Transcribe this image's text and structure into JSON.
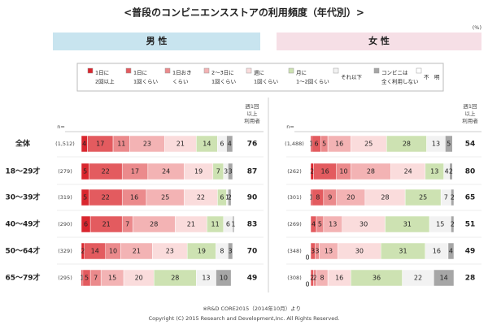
{
  "title": "<普段のコンビニエンスストアの利用頻度（年代別）>",
  "unit": "(%)",
  "legend": [
    {
      "name": "1日に\n2回以上",
      "color": "#d9262e"
    },
    {
      "name": "1日に\n1回くらい",
      "color": "#e35b5f"
    },
    {
      "name": "1日おき\nくらい",
      "color": "#eb8a8c"
    },
    {
      "name": "2～3日に\n1回くらい",
      "color": "#f3b3b4"
    },
    {
      "name": "週に\n1回くらい",
      "color": "#fadcdc"
    },
    {
      "name": "月に\n1～2回くらい",
      "color": "#cde2b2"
    },
    {
      "name": "それ以下",
      "color": "#f2f2f2"
    },
    {
      "name": "コンビニは\n全く利用しない",
      "color": "#a6a6a6"
    },
    {
      "name": "不　明",
      "color": "#ffffff"
    }
  ],
  "n_label": "n=",
  "score_header": "週1回\n以上\n利用者",
  "categories": [
    "全体",
    "18～29才",
    "30～39才",
    "40～49才",
    "50～64才",
    "65～79才"
  ],
  "panels": [
    {
      "title": "男 性",
      "color": "#c8e4ef",
      "n": [
        "(1,512)",
        "(279)",
        "(319)",
        "(290)",
        "(329)",
        "(295)"
      ],
      "values": [
        [
          4,
          17,
          11,
          23,
          21,
          14,
          6,
          4,
          null
        ],
        [
          5,
          22,
          17,
          24,
          19,
          7,
          3,
          3,
          null
        ],
        [
          5,
          22,
          16,
          25,
          22,
          6,
          1,
          2,
          null
        ],
        [
          6,
          21,
          7,
          28,
          21,
          11,
          6,
          1,
          null
        ],
        [
          2,
          14,
          10,
          21,
          23,
          19,
          8,
          3,
          null
        ],
        [
          1,
          5,
          7,
          15,
          20,
          28,
          13,
          10,
          null
        ]
      ],
      "scores": [
        76,
        87,
        90,
        83,
        70,
        49
      ]
    },
    {
      "title": "女 性",
      "color": "#f6dfe6",
      "n": [
        "(1,488)",
        "(262)",
        "(301)",
        "(269)",
        "(348)",
        "(308)"
      ],
      "values": [
        [
          1,
          6,
          5,
          16,
          25,
          28,
          13,
          5,
          null
        ],
        [
          2,
          16,
          10,
          28,
          24,
          13,
          4,
          2,
          null
        ],
        [
          1,
          8,
          9,
          20,
          28,
          25,
          7,
          2,
          null
        ],
        [
          null,
          4,
          5,
          13,
          30,
          31,
          15,
          2,
          null
        ],
        [
          0,
          3,
          3,
          13,
          30,
          31,
          16,
          4,
          null
        ],
        [
          0,
          2,
          2,
          8,
          16,
          36,
          22,
          14,
          null
        ]
      ],
      "scores": [
        54,
        80,
        65,
        51,
        49,
        28
      ]
    }
  ],
  "source": "※R&D CORE2015（2014年10月）より",
  "copyright": "Copyright (C) 2015 Research and Development,Inc. All Rights Reserved."
}
